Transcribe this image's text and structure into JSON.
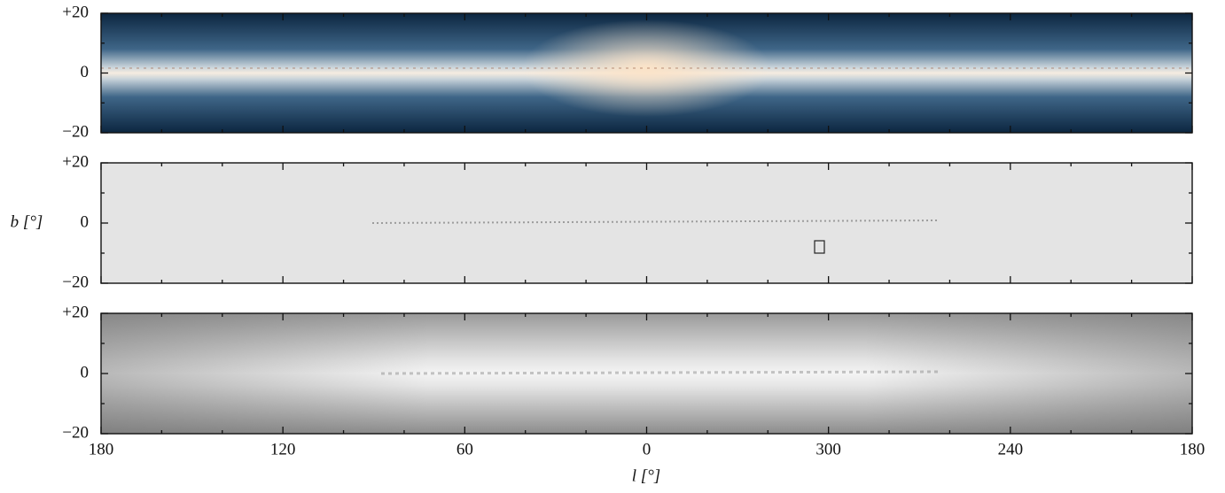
{
  "chart_data": {
    "type": "image",
    "xlabel": "l [°]",
    "ylabel": "b [°]",
    "xlim": [
      180,
      -180
    ],
    "xticks": [
      180,
      120,
      60,
      0,
      {
        "value": -60,
        "label": "300"
      },
      {
        "value": -120,
        "label": "240"
      },
      {
        "value": -180,
        "label": "180"
      }
    ],
    "xminorticks": [
      160,
      140,
      100,
      80,
      40,
      20,
      -20,
      -40,
      -80,
      -100,
      -140,
      -160
    ],
    "ylim": [
      -20,
      20
    ],
    "yticks": [
      {
        "value": 20,
        "label": "+20"
      },
      0,
      {
        "value": -20,
        "label": "−20"
      }
    ],
    "yminorticks": [
      10,
      -10
    ]
  }
}
